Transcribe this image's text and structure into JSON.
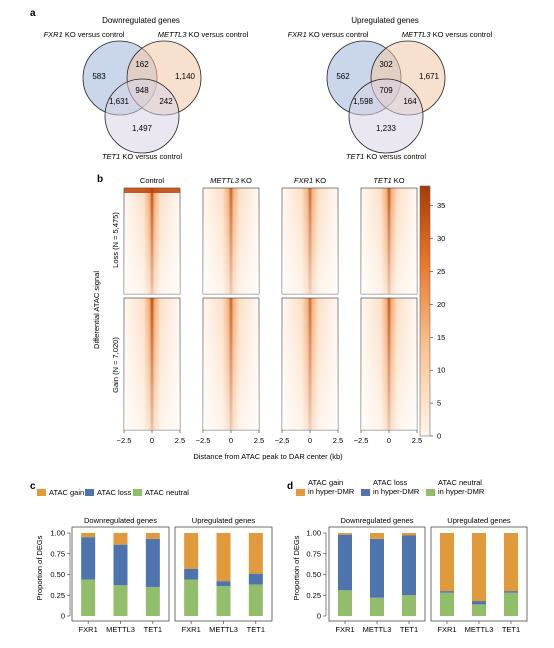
{
  "panels": {
    "a": "a",
    "b": "b",
    "c": "c",
    "d": "d"
  },
  "colors": {
    "fxr1": "#9fb6d8",
    "mettl3": "#f1c9a5",
    "tet1": "#d9d3e5",
    "gain": "#e09a3c",
    "loss": "#4e74ad",
    "neutral": "#92be6c",
    "heat_high": "#b8420a",
    "heat_low": "#fff4ea"
  },
  "venn": [
    {
      "title": "Downregulated genes",
      "fxr1_label_italic": "FXR1",
      "fxr1_label_rest": " KO versus control",
      "mettl3_label_italic": "METTL3",
      "mettl3_label_rest": " KO versus control",
      "tet1_label_italic": "TET1",
      "tet1_label_rest": " KO versus control",
      "counts": {
        "fxr1_only": "583",
        "mettl3_only": "1,140",
        "tet1_only": "1,497",
        "fxr1_mettl3": "162",
        "fxr1_tet1": "1,631",
        "mettl3_tet1": "242",
        "all": "948"
      }
    },
    {
      "title": "Upregulated genes",
      "fxr1_label_italic": "FXR1",
      "fxr1_label_rest": " KO versus control",
      "mettl3_label_italic": "METTL3",
      "mettl3_label_rest": " KO versus control",
      "tet1_label_italic": "TET1",
      "tet1_label_rest": " KO versus control",
      "counts": {
        "fxr1_only": "562",
        "mettl3_only": "1,671",
        "tet1_only": "1,233",
        "fxr1_mettl3": "302",
        "fxr1_tet1": "1,598",
        "mettl3_tet1": "164",
        "all": "709"
      }
    }
  ],
  "heatmap": {
    "columns": [
      {
        "label": "Control",
        "italic": false,
        "intensity": 1.0
      },
      {
        "label": "METTL3",
        "suffix": " KO",
        "italic": true,
        "intensity": 0.72
      },
      {
        "label": "FXR1",
        "suffix": " KO",
        "italic": true,
        "intensity": 0.62
      },
      {
        "label": "TET1",
        "suffix": " KO",
        "italic": true,
        "intensity": 0.82
      }
    ],
    "row_loss": "Loss (N = 5,475)",
    "row_gain": "Gain (N = 7,020)",
    "ylabel": "Differential ATAC signal",
    "xlabel": "Distance from ATAC peak to DAR center (kb)",
    "xticks": [
      "−2.5",
      "0",
      "2.5"
    ],
    "colorbar_ticks": [
      "35",
      "30",
      "25",
      "20",
      "15",
      "10",
      "5",
      "0"
    ]
  },
  "chart_data": [
    {
      "type": "bar",
      "panel": "c",
      "stacked": true,
      "legend": [
        "ATAC gain",
        "ATAC loss",
        "ATAC neutral"
      ],
      "ylabel": "Proportion of DEGs",
      "yticks": [
        "0",
        "0.25",
        "0.50",
        "0.75",
        "1.00"
      ],
      "ylim": [
        0,
        1
      ],
      "groups": [
        {
          "title": "Downregulated genes",
          "categories": [
            "FXR1",
            "METTL3",
            "TET1"
          ],
          "series": [
            {
              "name": "ATAC neutral",
              "values": [
                0.44,
                0.37,
                0.35
              ]
            },
            {
              "name": "ATAC loss",
              "values": [
                0.51,
                0.49,
                0.58
              ]
            },
            {
              "name": "ATAC gain",
              "values": [
                0.05,
                0.14,
                0.07
              ]
            }
          ]
        },
        {
          "title": "Upregulated genes",
          "categories": [
            "FXR1",
            "METTL3",
            "TET1"
          ],
          "series": [
            {
              "name": "ATAC neutral",
              "values": [
                0.44,
                0.36,
                0.38
              ]
            },
            {
              "name": "ATAC loss",
              "values": [
                0.13,
                0.06,
                0.13
              ]
            },
            {
              "name": "ATAC gain",
              "values": [
                0.43,
                0.58,
                0.49
              ]
            }
          ]
        }
      ]
    },
    {
      "type": "bar",
      "panel": "d",
      "stacked": true,
      "legend": [
        "ATAC gain\nin hyper-DMR",
        "ATAC loss\nin hyper-DMR",
        "ATAC neutral\nin hyper-DMR"
      ],
      "ylabel": "Proportion of DEGs",
      "yticks": [
        "0",
        "0.25",
        "0.50",
        "0.75",
        "1.00"
      ],
      "ylim": [
        0,
        1
      ],
      "groups": [
        {
          "title": "Downregulated genes",
          "categories": [
            "FXR1",
            "METTL3",
            "TET1"
          ],
          "series": [
            {
              "name": "ATAC neutral in hyper-DMR",
              "values": [
                0.31,
                0.22,
                0.25
              ]
            },
            {
              "name": "ATAC loss in hyper-DMR",
              "values": [
                0.67,
                0.71,
                0.72
              ]
            },
            {
              "name": "ATAC gain in hyper-DMR",
              "values": [
                0.02,
                0.07,
                0.03
              ]
            }
          ]
        },
        {
          "title": "Upregulated genes",
          "categories": [
            "FXR1",
            "METTL3",
            "TET1"
          ],
          "series": [
            {
              "name": "ATAC neutral in hyper-DMR",
              "values": [
                0.28,
                0.14,
                0.28
              ]
            },
            {
              "name": "ATAC loss in hyper-DMR",
              "values": [
                0.02,
                0.04,
                0.02
              ]
            },
            {
              "name": "ATAC gain in hyper-DMR",
              "values": [
                0.7,
                0.82,
                0.7
              ]
            }
          ]
        }
      ]
    }
  ]
}
